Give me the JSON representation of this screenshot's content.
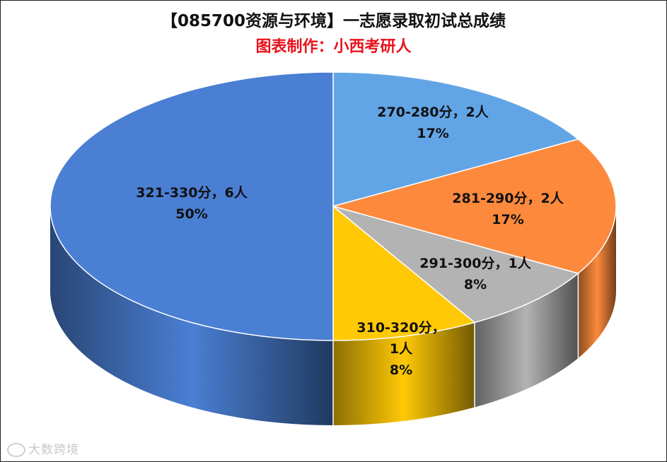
{
  "chart_data": {
    "type": "pie",
    "title": "【085700资源与环境】一志愿录取初试总成绩",
    "subtitle": "图表制作：小西考研人",
    "slices": [
      {
        "label": "270-280分，2人",
        "value": 2,
        "percent": "17%",
        "color": "#62a5e6"
      },
      {
        "label": "281-290分，2人",
        "value": 2,
        "percent": "17%",
        "color": "#fd8a3c"
      },
      {
        "label": "291-300分，1人",
        "value": 1,
        "percent": "8%",
        "color": "#b3b3b3"
      },
      {
        "label": "310-320分，1人",
        "value": 1,
        "percent": "8%",
        "color": "#ffc906"
      },
      {
        "label": "321-330分，6人",
        "value": 6,
        "percent": "50%",
        "color": "#4a7fd4"
      }
    ]
  },
  "watermark": "大数跨境"
}
